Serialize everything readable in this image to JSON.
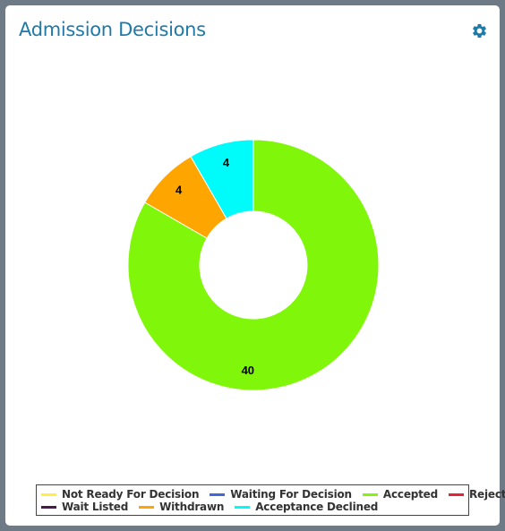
{
  "widget": {
    "title": "Admission Decisions",
    "settings_icon": "gear-icon",
    "accent_color": "#1f7aa8"
  },
  "chart_data": {
    "type": "pie",
    "variant": "donut",
    "categories": [
      "Not Ready For Decision",
      "Waiting For Decision",
      "Accepted",
      "Rejected",
      "Wait Listed",
      "Withdrawn",
      "Acceptance Declined"
    ],
    "values": [
      0,
      0,
      40,
      0,
      0,
      4,
      4
    ],
    "colors": [
      "#ffee44",
      "#4466dd",
      "#80f70a",
      "#e8203a",
      "#4a1a4a",
      "#ffa500",
      "#00fbfb"
    ],
    "data_labels": [
      "",
      "",
      "40",
      "",
      "",
      "4",
      "4"
    ],
    "legend_position": "bottom"
  },
  "legend": {
    "rows": [
      [
        {
          "label": "Not Ready For Decision",
          "color": "#ffee44"
        },
        {
          "label": "Waiting For Decision",
          "color": "#4466dd"
        },
        {
          "label": "Accepted",
          "color": "#80f70a"
        },
        {
          "label": "Rejected",
          "color": "#e8203a"
        }
      ],
      [
        {
          "label": "Wait Listed",
          "color": "#4a1a4a"
        },
        {
          "label": "Withdrawn",
          "color": "#ffa500"
        },
        {
          "label": "Acceptance Declined",
          "color": "#00fbfb"
        }
      ]
    ]
  }
}
